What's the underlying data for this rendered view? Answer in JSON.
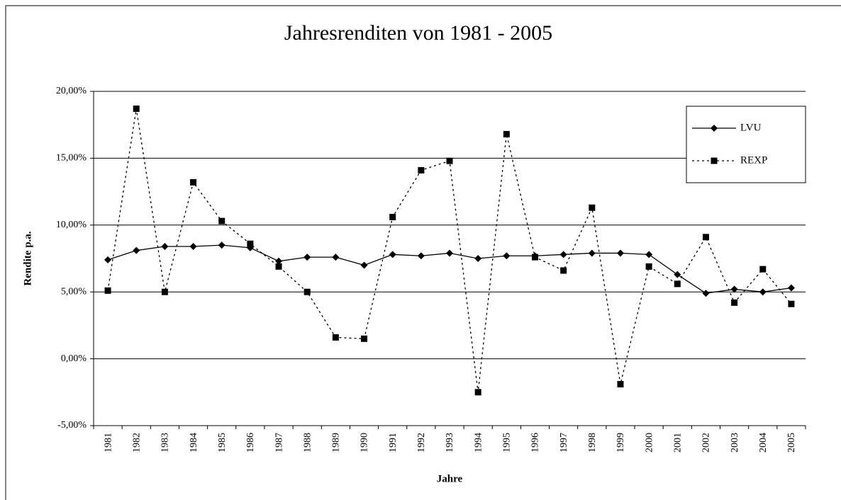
{
  "chart_data": {
    "type": "line",
    "title": "Jahresrenditen von 1981 - 2005",
    "x_label": "Jahre",
    "y_label": "Rendite p.a.",
    "categories": [
      "1981",
      "1982",
      "1983",
      "1984",
      "1985",
      "1986",
      "1987",
      "1988",
      "1989",
      "1990",
      "1991",
      "1992",
      "1993",
      "1994",
      "1995",
      "1996",
      "1997",
      "1998",
      "1999",
      "2000",
      "2001",
      "2002",
      "2003",
      "2004",
      "2005"
    ],
    "series": [
      {
        "name": "LVU",
        "color": "#000000",
        "dash": "solid",
        "marker": "diamond",
        "values": [
          7.4,
          8.1,
          8.4,
          8.4,
          8.5,
          8.3,
          7.3,
          7.6,
          7.6,
          7.0,
          7.8,
          7.7,
          7.9,
          7.5,
          7.7,
          7.7,
          7.8,
          7.9,
          7.9,
          7.8,
          6.3,
          4.9,
          5.2,
          5.0,
          5.3
        ]
      },
      {
        "name": "REXP",
        "color": "#000000",
        "dash": "dotted",
        "marker": "square",
        "values": [
          5.1,
          18.7,
          5.0,
          13.2,
          10.3,
          8.6,
          6.9,
          5.0,
          1.6,
          1.5,
          10.6,
          14.1,
          14.8,
          -2.5,
          16.8,
          7.6,
          6.6,
          11.3,
          -1.9,
          6.9,
          5.6,
          9.1,
          4.2,
          6.7,
          4.1
        ]
      }
    ],
    "ylim": [
      -5,
      20
    ],
    "yticks": [
      {
        "value": -5,
        "label": "-5,00%"
      },
      {
        "value": 0,
        "label": "0,00%"
      },
      {
        "value": 5,
        "label": "5,00%"
      },
      {
        "value": 10,
        "label": "10,00%"
      },
      {
        "value": 15,
        "label": "15,00%"
      },
      {
        "value": 20,
        "label": "20,00%"
      }
    ],
    "grid": true,
    "legend": "upper right"
  }
}
